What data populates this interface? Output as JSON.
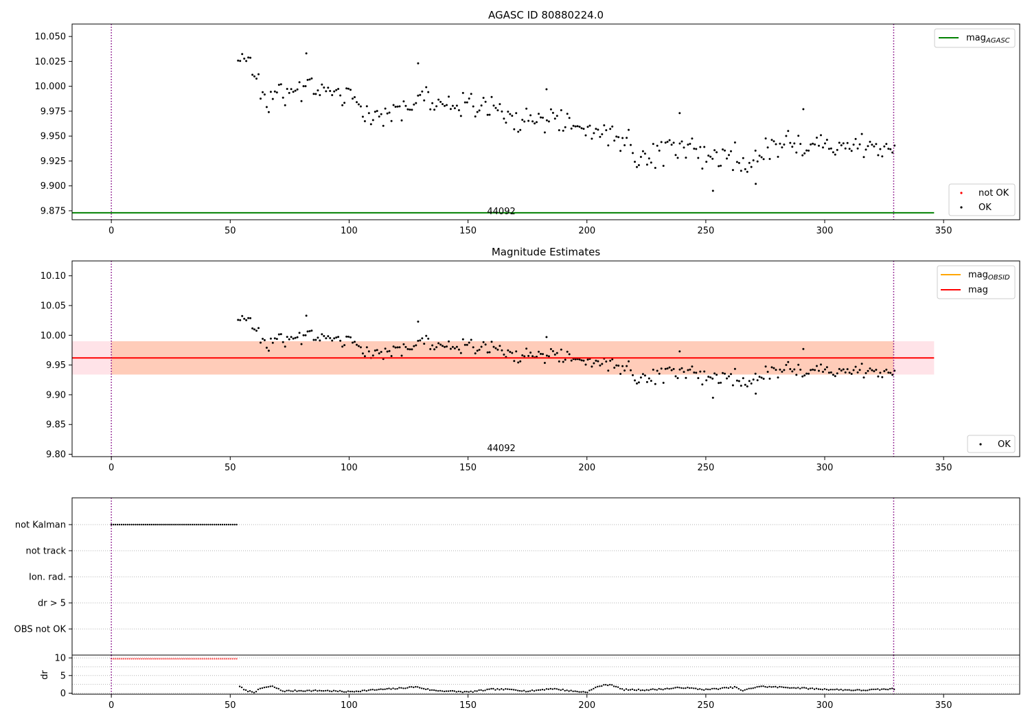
{
  "chart_data": [
    {
      "type": "scatter",
      "title": "AGASC ID 80880224.0",
      "xlim": [
        -16.5,
        382
      ],
      "ylim": [
        9.866,
        10.0625
      ],
      "x_ticks": [
        0,
        50,
        100,
        150,
        200,
        250,
        300,
        350
      ],
      "y_ticks": [
        9.875,
        9.9,
        9.925,
        9.95,
        9.975,
        10.0,
        10.025,
        10.05
      ],
      "y_tick_labels": [
        "9.875",
        "9.900",
        "9.925",
        "9.950",
        "9.975",
        "10.000",
        "10.025",
        "10.050"
      ],
      "obsid_label": "44092",
      "obsid_label_x": 164,
      "vlines": [
        0,
        329
      ],
      "hline": {
        "y": 9.873,
        "x_range": [
          -16.5,
          346
        ],
        "color": "#008000"
      },
      "legend_top": [
        {
          "label": "mag",
          "subscript": "AGASC",
          "color": "#008000",
          "kind": "line"
        }
      ],
      "legend_bottom": [
        {
          "label": "not OK",
          "color": "#ff0000",
          "kind": "dot"
        },
        {
          "label": "OK",
          "color": "#000000",
          "kind": "dot"
        }
      ],
      "anchors": [
        [
          53,
          10.02
        ],
        [
          57,
          10.03
        ],
        [
          62,
          10.0
        ],
        [
          66,
          9.975
        ],
        [
          70,
          9.99
        ],
        [
          78,
          9.995
        ],
        [
          85,
          10.0
        ],
        [
          95,
          9.99
        ],
        [
          100,
          9.995
        ],
        [
          105,
          9.97
        ],
        [
          115,
          9.97
        ],
        [
          120,
          9.98
        ],
        [
          130,
          9.985
        ],
        [
          140,
          9.98
        ],
        [
          150,
          9.98
        ],
        [
          160,
          9.98
        ],
        [
          170,
          9.965
        ],
        [
          180,
          9.965
        ],
        [
          190,
          9.965
        ],
        [
          200,
          9.955
        ],
        [
          210,
          9.955
        ],
        [
          220,
          9.935
        ],
        [
          225,
          9.925
        ],
        [
          230,
          9.93
        ],
        [
          240,
          9.945
        ],
        [
          250,
          9.93
        ],
        [
          260,
          9.93
        ],
        [
          270,
          9.92
        ],
        [
          275,
          9.935
        ],
        [
          285,
          9.945
        ],
        [
          295,
          9.94
        ],
        [
          310,
          9.94
        ],
        [
          320,
          9.94
        ],
        [
          329,
          9.935
        ]
      ],
      "outliers": [
        [
          82,
          10.033
        ],
        [
          129,
          10.023
        ],
        [
          183,
          9.997
        ],
        [
          253,
          9.895
        ],
        [
          271,
          9.902
        ],
        [
          291,
          9.977
        ],
        [
          239,
          9.973
        ]
      ]
    },
    {
      "type": "scatter",
      "title": "Magnitude Estimates",
      "xlim": [
        -16.5,
        382
      ],
      "ylim": [
        9.796,
        10.125
      ],
      "x_ticks": [
        0,
        50,
        100,
        150,
        200,
        250,
        300,
        350
      ],
      "y_ticks": [
        9.8,
        9.85,
        9.9,
        9.95,
        10.0,
        10.05,
        10.1
      ],
      "y_tick_labels": [
        "9.80",
        "9.85",
        "9.90",
        "9.95",
        "10.00",
        "10.05",
        "10.10"
      ],
      "obsid_label": "44092",
      "obsid_label_x": 164,
      "vlines": [
        0,
        329
      ],
      "mag_line": {
        "y": 9.962,
        "x_range": [
          -16.5,
          346
        ],
        "color": "#ff0000"
      },
      "band_pink": {
        "y_range": [
          9.934,
          9.99
        ],
        "x_range": [
          -16.5,
          346
        ],
        "color": "#ffc0cb"
      },
      "band_orange": {
        "y_range": [
          9.934,
          9.99
        ],
        "x_range": [
          0,
          329
        ],
        "color": "#ffa060"
      },
      "legend_top": [
        {
          "label": "mag",
          "subscript": "OBSID",
          "color": "#ffa500",
          "kind": "line"
        },
        {
          "label": "mag",
          "subscript": "",
          "color": "#ff0000",
          "kind": "line"
        }
      ],
      "legend_bottom": [
        {
          "label": "OK",
          "color": "#000000",
          "kind": "dot"
        }
      ]
    },
    {
      "type": "scatter",
      "xlim": [
        -16.5,
        382
      ],
      "categories": [
        "not Kalman",
        "not track",
        "Ion. rad.",
        "dr > 5",
        "OBS not OK"
      ],
      "flag_segment": {
        "category": "not Kalman",
        "x_range": [
          0,
          53
        ],
        "color": "#000000"
      },
      "vlines": [
        0,
        329
      ]
    },
    {
      "type": "scatter",
      "ylabel": "dr",
      "xlim": [
        -16.5,
        382
      ],
      "ylim": [
        -0.3,
        10.8
      ],
      "x_ticks": [
        0,
        50,
        100,
        150,
        200,
        250,
        300,
        350
      ],
      "y_ticks": [
        0,
        5,
        10
      ],
      "y_tick_labels": [
        "0",
        "5",
        "10"
      ],
      "vlines": [
        0,
        329
      ],
      "capped": {
        "x_range": [
          0,
          53
        ],
        "y": 9.7,
        "color": "#ff0000"
      },
      "dr_anchors": [
        [
          54,
          2.0
        ],
        [
          56,
          0.8
        ],
        [
          60,
          0.3
        ],
        [
          64,
          1.6
        ],
        [
          68,
          1.9
        ],
        [
          72,
          0.6
        ],
        [
          80,
          0.7
        ],
        [
          90,
          0.7
        ],
        [
          100,
          0.4
        ],
        [
          110,
          0.9
        ],
        [
          120,
          1.3
        ],
        [
          128,
          1.8
        ],
        [
          135,
          0.8
        ],
        [
          150,
          0.3
        ],
        [
          160,
          1.1
        ],
        [
          170,
          1.0
        ],
        [
          175,
          0.5
        ],
        [
          185,
          1.3
        ],
        [
          195,
          0.5
        ],
        [
          200,
          0.3
        ],
        [
          205,
          2.0
        ],
        [
          210,
          2.5
        ],
        [
          215,
          1.0
        ],
        [
          225,
          0.9
        ],
        [
          235,
          1.3
        ],
        [
          240,
          1.6
        ],
        [
          250,
          1.0
        ],
        [
          263,
          1.7
        ],
        [
          265,
          0.6
        ],
        [
          272,
          1.9
        ],
        [
          285,
          1.6
        ],
        [
          300,
          1.1
        ],
        [
          315,
          0.8
        ],
        [
          329,
          1.2
        ]
      ]
    }
  ]
}
